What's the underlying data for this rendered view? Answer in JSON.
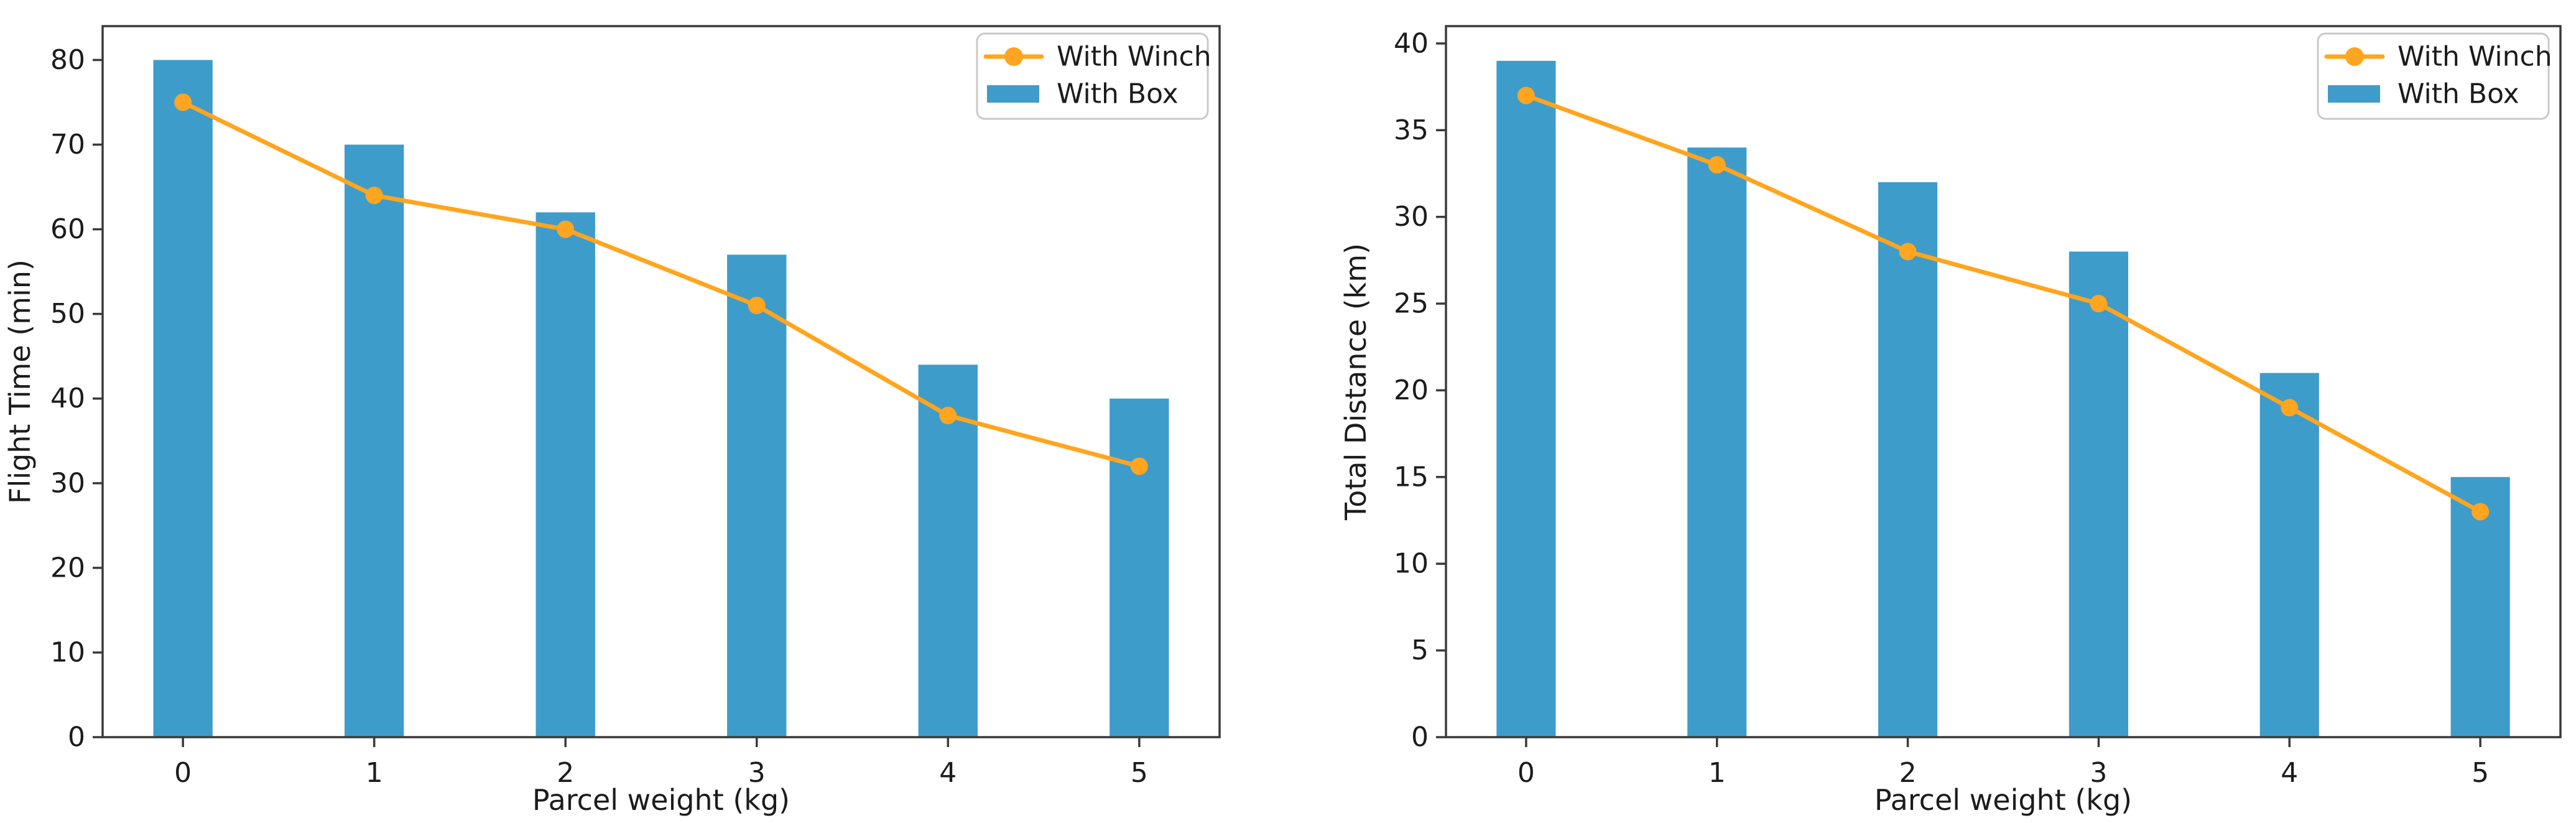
{
  "figure": {
    "background_color": "#ffffff",
    "num_subplots": 2
  },
  "style": {
    "bar_color": "#3E9CCB",
    "line_color": "#FFA51F",
    "spine_color": "#3a3a3a",
    "tick_text_color": "#1c1c1c",
    "legend_border_color": "#c9c9c9",
    "legend_background": "#ffffff"
  },
  "chart_data": [
    {
      "type": "bar",
      "title": "",
      "xlabel": "Parcel weight (kg)",
      "ylabel": "Flight Time (min)",
      "categories": [
        "0",
        "1",
        "2",
        "3",
        "4",
        "5"
      ],
      "series": [
        {
          "name": "With Winch",
          "style": "line",
          "marker": "circle",
          "color": "#FFA51F",
          "values": [
            75,
            64,
            60,
            51,
            38,
            32
          ]
        },
        {
          "name": "With Box",
          "style": "bar",
          "color": "#3E9CCB",
          "values": [
            80,
            70,
            62,
            57,
            44,
            40
          ]
        }
      ],
      "ylim": [
        0,
        84
      ],
      "yticks": [
        0,
        10,
        20,
        30,
        40,
        50,
        60,
        70,
        80
      ],
      "grid": false,
      "legend": {
        "position": "upper-right",
        "entries": [
          "With Winch",
          "With Box"
        ]
      }
    },
    {
      "type": "bar",
      "title": "",
      "xlabel": "Parcel weight (kg)",
      "ylabel": "Total Distance (km)",
      "categories": [
        "0",
        "1",
        "2",
        "3",
        "4",
        "5"
      ],
      "series": [
        {
          "name": "With Winch",
          "style": "line",
          "marker": "circle",
          "color": "#FFA51F",
          "values": [
            37,
            33,
            28,
            25,
            19,
            13
          ]
        },
        {
          "name": "With Box",
          "style": "bar",
          "color": "#3E9CCB",
          "values": [
            39,
            34,
            32,
            28,
            21,
            15
          ]
        }
      ],
      "ylim": [
        0,
        41
      ],
      "yticks": [
        0,
        5,
        10,
        15,
        20,
        25,
        30,
        35,
        40
      ],
      "grid": false,
      "legend": {
        "position": "upper-right",
        "entries": [
          "With Winch",
          "With Box"
        ]
      }
    }
  ]
}
